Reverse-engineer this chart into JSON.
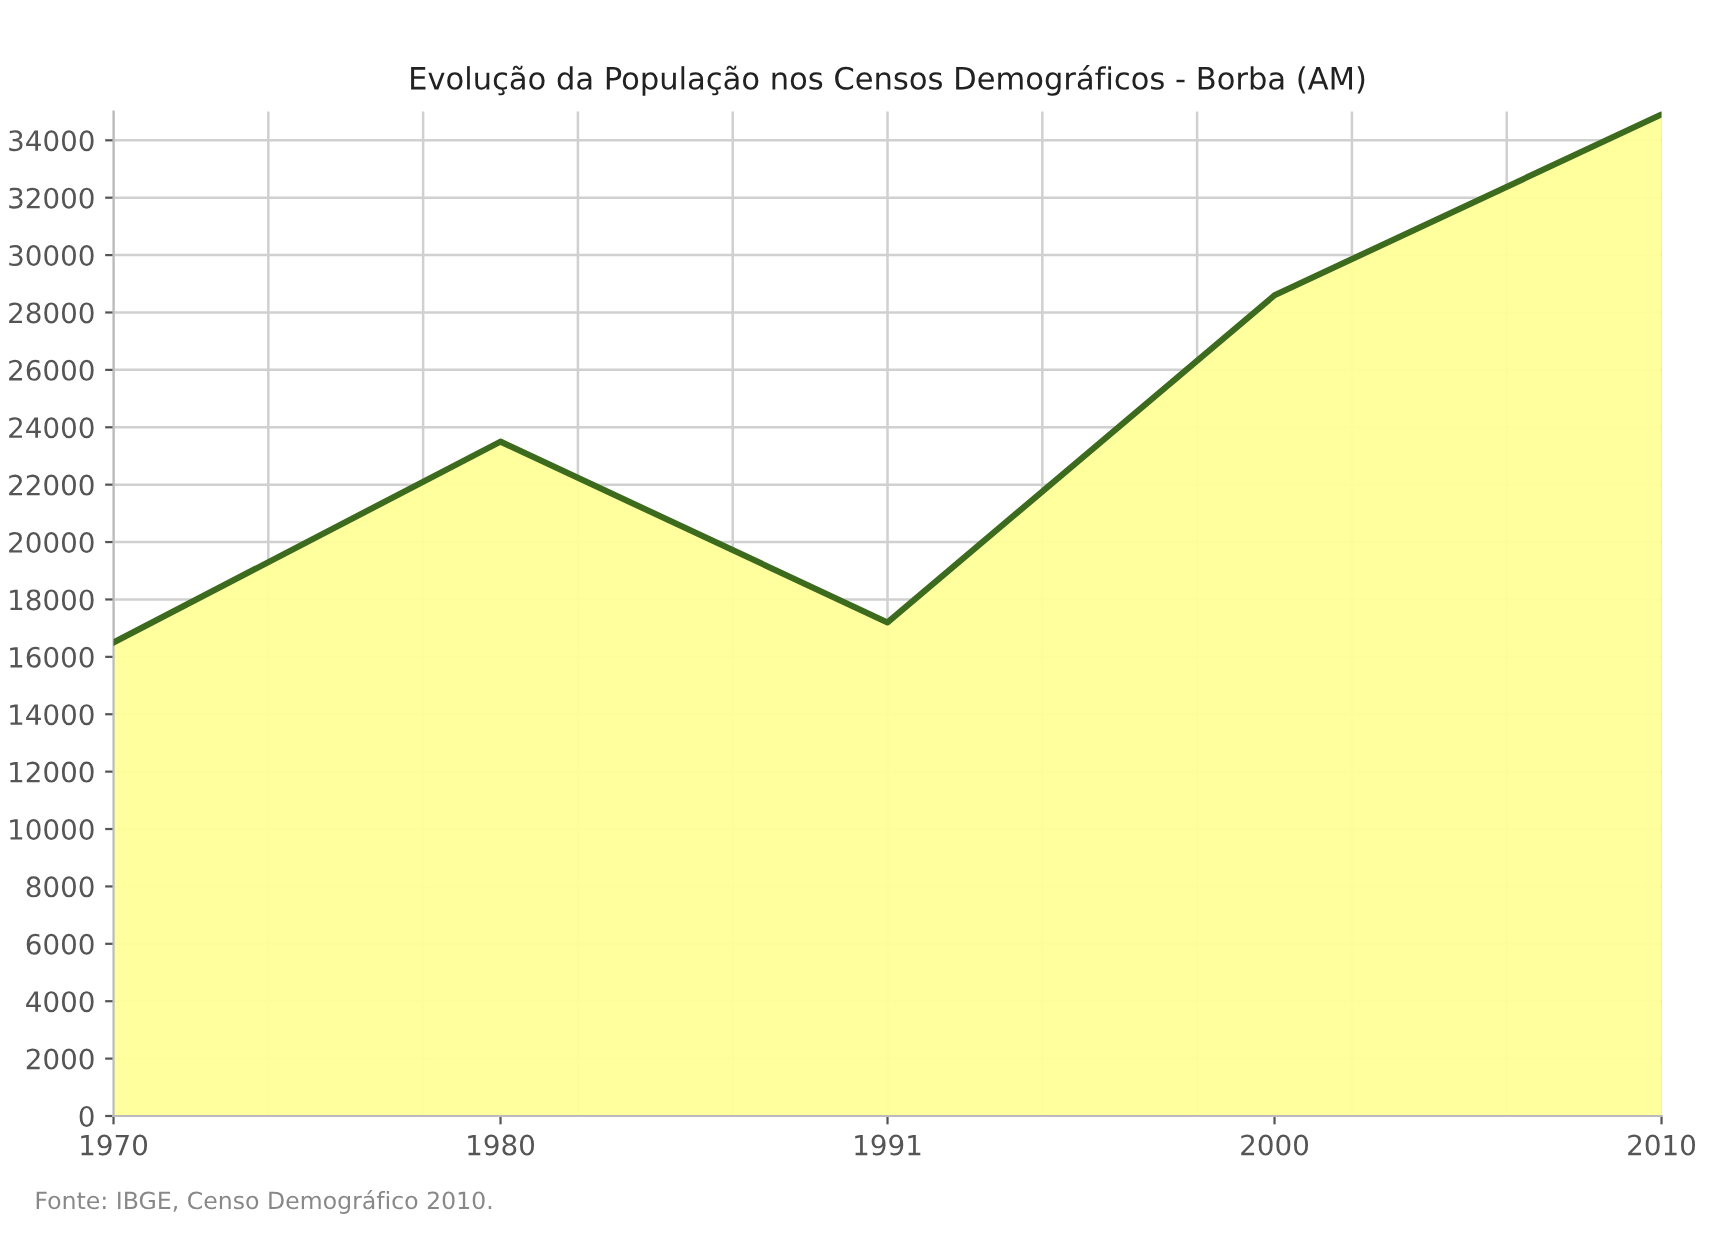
{
  "chart_data": {
    "type": "area",
    "title": "Evolução da População nos Censos Demográficos - Borba (AM)",
    "categories": [
      "1970",
      "1980",
      "1991",
      "2000",
      "2010"
    ],
    "series": [
      {
        "color": "#3d6b1e",
        "values": [
          16500,
          23500,
          17200,
          28600,
          34900
        ]
      }
    ],
    "ylim": [
      0,
      35000
    ],
    "yticks": [
      0,
      2000,
      4000,
      6000,
      8000,
      10000,
      12000,
      14000,
      16000,
      18000,
      20000,
      22000,
      24000,
      26000,
      28000,
      30000,
      32000,
      34000
    ],
    "grid": true,
    "legend": false,
    "marker": "none",
    "annotations": [
      "Fonte: IBGE, Censo Demográfico 2010."
    ]
  }
}
